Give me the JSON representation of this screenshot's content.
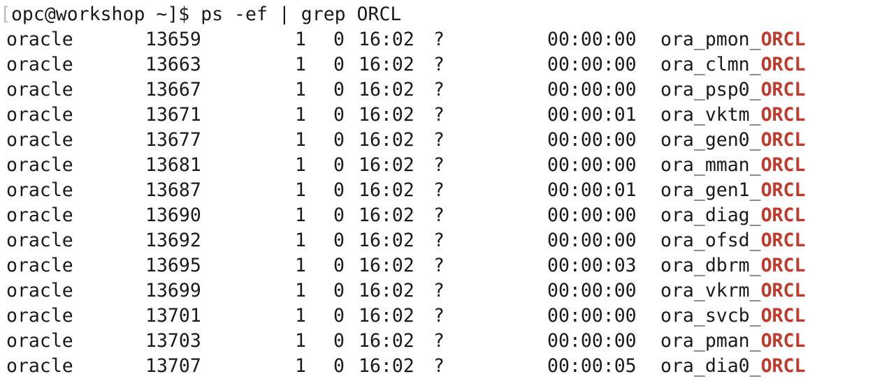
{
  "terminal": {
    "prompt": {
      "bracket": "[",
      "text": "opc@workshop ~]$ ps -ef | grep ORCL"
    },
    "match_term": "ORCL",
    "match_color": "#c0392b",
    "rows": [
      {
        "user": "oracle",
        "pid": "13659",
        "ppid": "1",
        "c": "0",
        "stime": "16:02",
        "tty": "?",
        "time": "00:00:00",
        "cmd_prefix": "ora_pmon_",
        "cmd_match": "ORCL"
      },
      {
        "user": "oracle",
        "pid": "13663",
        "ppid": "1",
        "c": "0",
        "stime": "16:02",
        "tty": "?",
        "time": "00:00:00",
        "cmd_prefix": "ora_clmn_",
        "cmd_match": "ORCL"
      },
      {
        "user": "oracle",
        "pid": "13667",
        "ppid": "1",
        "c": "0",
        "stime": "16:02",
        "tty": "?",
        "time": "00:00:00",
        "cmd_prefix": "ora_psp0_",
        "cmd_match": "ORCL"
      },
      {
        "user": "oracle",
        "pid": "13671",
        "ppid": "1",
        "c": "0",
        "stime": "16:02",
        "tty": "?",
        "time": "00:00:01",
        "cmd_prefix": "ora_vktm_",
        "cmd_match": "ORCL"
      },
      {
        "user": "oracle",
        "pid": "13677",
        "ppid": "1",
        "c": "0",
        "stime": "16:02",
        "tty": "?",
        "time": "00:00:00",
        "cmd_prefix": "ora_gen0_",
        "cmd_match": "ORCL"
      },
      {
        "user": "oracle",
        "pid": "13681",
        "ppid": "1",
        "c": "0",
        "stime": "16:02",
        "tty": "?",
        "time": "00:00:00",
        "cmd_prefix": "ora_mman_",
        "cmd_match": "ORCL"
      },
      {
        "user": "oracle",
        "pid": "13687",
        "ppid": "1",
        "c": "0",
        "stime": "16:02",
        "tty": "?",
        "time": "00:00:01",
        "cmd_prefix": "ora_gen1_",
        "cmd_match": "ORCL"
      },
      {
        "user": "oracle",
        "pid": "13690",
        "ppid": "1",
        "c": "0",
        "stime": "16:02",
        "tty": "?",
        "time": "00:00:00",
        "cmd_prefix": "ora_diag_",
        "cmd_match": "ORCL"
      },
      {
        "user": "oracle",
        "pid": "13692",
        "ppid": "1",
        "c": "0",
        "stime": "16:02",
        "tty": "?",
        "time": "00:00:00",
        "cmd_prefix": "ora_ofsd_",
        "cmd_match": "ORCL"
      },
      {
        "user": "oracle",
        "pid": "13695",
        "ppid": "1",
        "c": "0",
        "stime": "16:02",
        "tty": "?",
        "time": "00:00:03",
        "cmd_prefix": "ora_dbrm_",
        "cmd_match": "ORCL"
      },
      {
        "user": "oracle",
        "pid": "13699",
        "ppid": "1",
        "c": "0",
        "stime": "16:02",
        "tty": "?",
        "time": "00:00:00",
        "cmd_prefix": "ora_vkrm_",
        "cmd_match": "ORCL"
      },
      {
        "user": "oracle",
        "pid": "13701",
        "ppid": "1",
        "c": "0",
        "stime": "16:02",
        "tty": "?",
        "time": "00:00:00",
        "cmd_prefix": "ora_svcb_",
        "cmd_match": "ORCL"
      },
      {
        "user": "oracle",
        "pid": "13703",
        "ppid": "1",
        "c": "0",
        "stime": "16:02",
        "tty": "?",
        "time": "00:00:00",
        "cmd_prefix": "ora_pman_",
        "cmd_match": "ORCL"
      },
      {
        "user": "oracle",
        "pid": "13707",
        "ppid": "1",
        "c": "0",
        "stime": "16:02",
        "tty": "?",
        "time": "00:00:05",
        "cmd_prefix": "ora_dia0_",
        "cmd_match": "ORCL"
      }
    ]
  }
}
